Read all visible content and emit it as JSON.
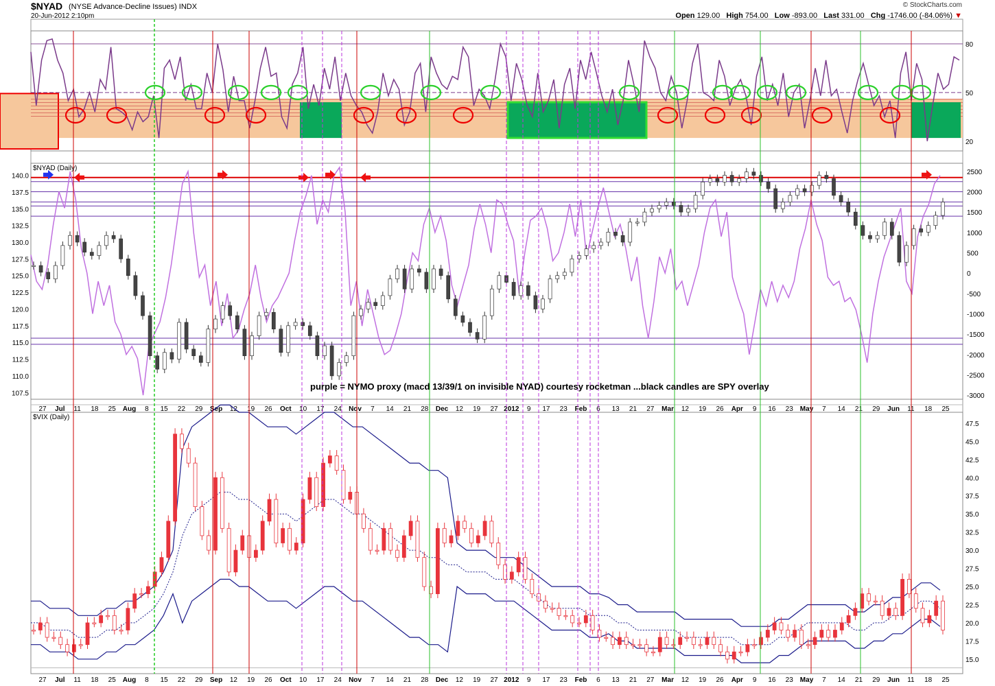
{
  "header": {
    "symbol": "$NYAD",
    "description": "(NYSE Advance-Decline Issues)  INDX",
    "datetime": "20-Jun-2012 2:10pm",
    "brand": "© StockCharts.com",
    "quote": {
      "open_label": "Open",
      "open": "129.00",
      "high_label": "High",
      "high": "754.00",
      "low_label": "Low",
      "low": "-893.00",
      "last_label": "Last",
      "last": "331.00",
      "chg_label": "Chg",
      "chg": "-1746.00 (-84.06%)"
    }
  },
  "panels": {
    "nyad_label": "$NYAD (Daily)",
    "vix_label": "$VIX (Daily)"
  },
  "annotation": "purple = NYMO proxy (macd 13/39/1 on invisible NYAD) courtesy rocketman ...black candles are SPY overlay",
  "colors": {
    "purple": "#7a3a8a",
    "light_purple": "#c070e0",
    "band_orange": "#f6c79c",
    "red_line": "#cc0000",
    "green_line": "#2bc02b",
    "dark_green_box": "#0aa85a",
    "vix_candle": "#e8343c",
    "bollinger": "#1a1a8a"
  },
  "x_axis": {
    "labels": [
      "27",
      "Jul",
      "11",
      "18",
      "25",
      "Aug",
      "8",
      "15",
      "22",
      "29",
      "Sep",
      "12",
      "19",
      "26",
      "Oct",
      "10",
      "17",
      "24",
      "Nov",
      "7",
      "14",
      "21",
      "28",
      "Dec",
      "12",
      "19",
      "27",
      "2012",
      "9",
      "17",
      "23",
      "Feb",
      "6",
      "13",
      "21",
      "27",
      "Mar",
      "12",
      "19",
      "26",
      "Apr",
      "9",
      "16",
      "23",
      "May",
      "7",
      "14",
      "21",
      "29",
      "Jun",
      "11",
      "18",
      "25"
    ],
    "bold": [
      "Jul",
      "Aug",
      "Sep",
      "Oct",
      "Nov",
      "Dec",
      "2012",
      "Feb",
      "Mar",
      "Apr",
      "May",
      "Jun"
    ]
  },
  "chart_data": [
    {
      "type": "line",
      "title": "",
      "series": [
        {
          "name": "",
          "values": [
            75,
            42,
            70,
            82,
            83,
            70,
            62,
            45,
            52,
            35,
            40,
            50,
            38,
            58,
            52,
            78,
            40,
            38,
            35,
            27,
            38,
            32,
            35,
            48,
            22,
            65,
            70,
            58,
            72,
            45,
            55,
            40,
            40,
            62,
            50,
            80,
            64,
            38,
            60,
            45,
            45,
            28,
            45,
            65,
            78,
            60,
            62,
            35,
            28,
            55,
            62,
            78,
            40,
            55,
            42,
            65,
            52,
            72,
            45,
            62,
            48,
            42,
            38,
            30,
            25,
            38,
            62,
            48,
            58,
            52,
            30,
            38,
            62,
            68,
            38,
            72,
            62,
            55,
            52,
            60,
            58,
            78,
            72,
            42,
            52,
            48,
            40,
            58,
            80,
            72,
            45,
            68,
            58,
            42,
            35,
            62,
            38,
            45,
            58,
            28,
            55,
            65,
            40,
            70,
            58,
            75,
            62,
            48,
            38,
            52,
            30,
            45,
            70,
            55,
            38,
            82,
            72,
            65,
            50,
            45,
            60,
            50,
            28,
            45,
            68,
            80,
            50,
            48,
            45,
            70,
            60,
            42,
            52,
            58,
            48,
            30,
            60,
            72,
            45,
            55,
            42,
            62,
            35,
            50,
            55,
            28,
            45,
            65,
            48,
            70,
            48,
            52,
            38,
            25,
            45,
            58,
            68,
            55,
            42,
            48,
            35,
            45,
            22,
            62,
            75,
            45,
            68,
            58,
            20,
            42,
            62,
            52,
            55,
            72,
            70
          ]
        }
      ],
      "ylim": [
        14,
        88
      ],
      "ticks": [
        80,
        50,
        20
      ],
      "dashed_line": 50,
      "band": [
        22,
        46
      ]
    },
    {
      "type": "line",
      "title": "",
      "series": [
        {
          "name": "",
          "values": [
            450,
            -200,
            -400,
            200,
            1200,
            2000,
            1600,
            2500,
            1800,
            600,
            0,
            -1000,
            -200,
            -800,
            -300,
            -1200,
            -1500,
            -2000,
            -1800,
            -2100,
            -3000,
            -1800,
            -1500,
            -1200,
            -600,
            200,
            1200,
            2200,
            2500,
            1000,
            -100,
            200,
            -800,
            -200,
            -1300,
            -500,
            -1600,
            -1400,
            -900,
            -500,
            200,
            -600,
            -1200,
            -800,
            -600,
            -300,
            0,
            800,
            1500,
            1900,
            2400,
            1200,
            1800,
            1500,
            2400,
            2600,
            1500,
            -800,
            -200,
            -1300,
            -400,
            -1000,
            -1600,
            -2000,
            -1900,
            -1500,
            -1000,
            -200,
            500,
            300,
            1200,
            1600,
            1000,
            1400,
            800,
            -300,
            -800,
            -300,
            200,
            1100,
            1700,
            1200,
            500,
            1800,
            1700,
            1200,
            800,
            -500,
            500,
            1300,
            1400,
            1600,
            1100,
            300,
            500,
            1000,
            1700,
            900,
            1800,
            400,
            1000,
            1600,
            2100,
            1500,
            900,
            1200,
            600,
            -200,
            400,
            -800,
            -1600,
            -700,
            400,
            0,
            600,
            -400,
            -200,
            -800,
            -300,
            200,
            1000,
            1600,
            1800,
            900,
            1500,
            -100,
            -600,
            -1000,
            -2000,
            -1200,
            -400,
            -800,
            -200,
            -700,
            -300,
            -600,
            -200,
            600,
            1100,
            1800,
            1200,
            800,
            -100,
            -300,
            -200,
            -700,
            -600,
            -900,
            -1500,
            -2200,
            -1000,
            -200,
            400,
            800,
            1200,
            1600,
            -200,
            -500,
            900,
            1400,
            1700,
            2200,
            2400
          ]
        },
        {
          "name": "",
          "values": [
            126.5,
            125.5,
            124.5,
            126.5,
            129.5,
            131,
            130,
            128.5,
            128,
            129.5,
            131,
            130.5,
            127.5,
            125,
            122,
            119,
            113,
            111,
            113.5,
            112.5,
            118,
            114,
            113,
            112,
            117,
            118.5,
            120.5,
            119,
            117,
            113,
            116,
            119,
            119.5,
            117,
            113.5,
            117.5,
            118,
            117.5,
            116,
            113,
            114.5,
            110,
            112,
            113,
            119,
            120,
            121,
            120.5,
            122,
            124.5,
            126,
            123,
            126,
            125.5,
            123,
            126,
            125,
            121.5,
            119,
            118,
            116.5,
            115.5,
            119,
            123,
            125,
            124,
            122,
            123.5,
            122,
            120,
            121.5,
            124.5,
            125,
            125.5,
            127.5,
            128,
            129,
            129.5,
            130,
            131.5,
            131,
            130,
            133,
            133,
            134.5,
            135,
            135.5,
            136,
            135.5,
            134.5,
            135,
            137,
            139,
            139.5,
            139,
            140,
            139,
            139.5,
            140.5,
            140,
            139,
            138,
            135,
            136,
            137,
            138,
            137.5,
            138.5,
            140,
            139.5,
            137,
            136,
            134.5,
            132.5,
            131,
            130.5,
            131,
            133,
            131,
            127,
            129.5,
            132,
            131.5,
            132.5,
            134,
            136
          ]
        }
      ],
      "ylim": [
        -3100,
        2700
      ],
      "right_ticks": [
        2500,
        2000,
        1500,
        1000,
        500,
        0,
        -500,
        -1000,
        -1500,
        -2000,
        -2500,
        -3000
      ],
      "left_ticks": [
        140.0,
        137.5,
        135.0,
        132.5,
        130.0,
        127.5,
        125.0,
        122.5,
        120.0,
        117.5,
        115.0,
        112.5,
        110.0,
        107.5
      ]
    },
    {
      "type": "line",
      "title": "",
      "series": [
        {
          "name": "",
          "values": [
            19,
            20,
            18,
            18,
            17,
            16,
            17,
            17,
            20,
            20,
            21,
            21,
            19,
            19,
            22,
            24,
            24,
            25,
            27,
            29,
            34,
            46,
            44,
            42,
            36,
            32,
            30,
            40,
            33,
            27,
            30,
            32,
            29,
            30,
            34,
            37,
            31,
            33,
            30,
            31,
            37,
            40,
            36,
            42,
            43,
            41,
            37,
            38,
            35,
            33,
            30,
            30,
            33,
            30,
            29,
            32,
            34,
            29,
            25,
            24,
            33,
            31,
            32,
            34,
            33,
            31,
            32,
            34,
            31,
            28,
            26,
            27,
            29,
            26,
            24,
            23,
            22,
            22,
            21,
            21,
            20,
            20,
            21,
            19,
            18,
            18,
            17,
            18,
            17,
            17,
            17,
            16,
            16,
            18,
            17,
            17,
            18,
            18,
            17,
            17,
            18,
            17,
            16,
            15,
            16,
            16,
            17,
            17,
            18,
            19,
            20,
            19,
            18,
            19,
            17,
            17,
            18,
            19,
            18,
            19,
            20,
            21,
            22,
            24,
            23,
            23,
            21,
            22,
            21,
            26,
            24,
            22,
            20,
            21,
            23,
            19
          ]
        },
        {
          "name": "",
          "values": [
            20,
            20,
            19,
            19,
            19,
            18,
            18,
            18,
            19,
            19,
            20,
            20,
            21,
            22,
            24,
            27,
            32,
            35,
            36,
            37,
            38,
            38,
            37,
            37,
            36,
            35,
            35,
            35,
            34,
            35,
            36,
            37,
            37,
            36,
            35,
            35,
            34,
            33,
            32,
            31,
            30,
            30,
            29,
            29,
            28,
            28,
            27,
            27,
            27,
            26,
            26,
            26,
            25,
            24,
            23,
            22,
            22,
            22,
            22,
            21,
            21,
            21,
            20,
            20,
            19,
            19,
            19,
            19,
            19,
            18,
            18,
            18,
            18,
            18,
            18,
            17,
            17,
            17,
            17,
            18,
            18,
            19,
            20,
            20,
            20,
            20,
            20,
            19,
            19,
            20,
            20,
            21,
            21,
            22,
            23,
            23,
            22
          ]
        }
      ],
      "ylim": [
        13,
        49
      ],
      "ticks": [
        47.5,
        45.0,
        42.5,
        40.0,
        37.5,
        35.0,
        32.5,
        30.0,
        27.5,
        25.0,
        22.5,
        20.0,
        17.5,
        15.0
      ]
    }
  ]
}
